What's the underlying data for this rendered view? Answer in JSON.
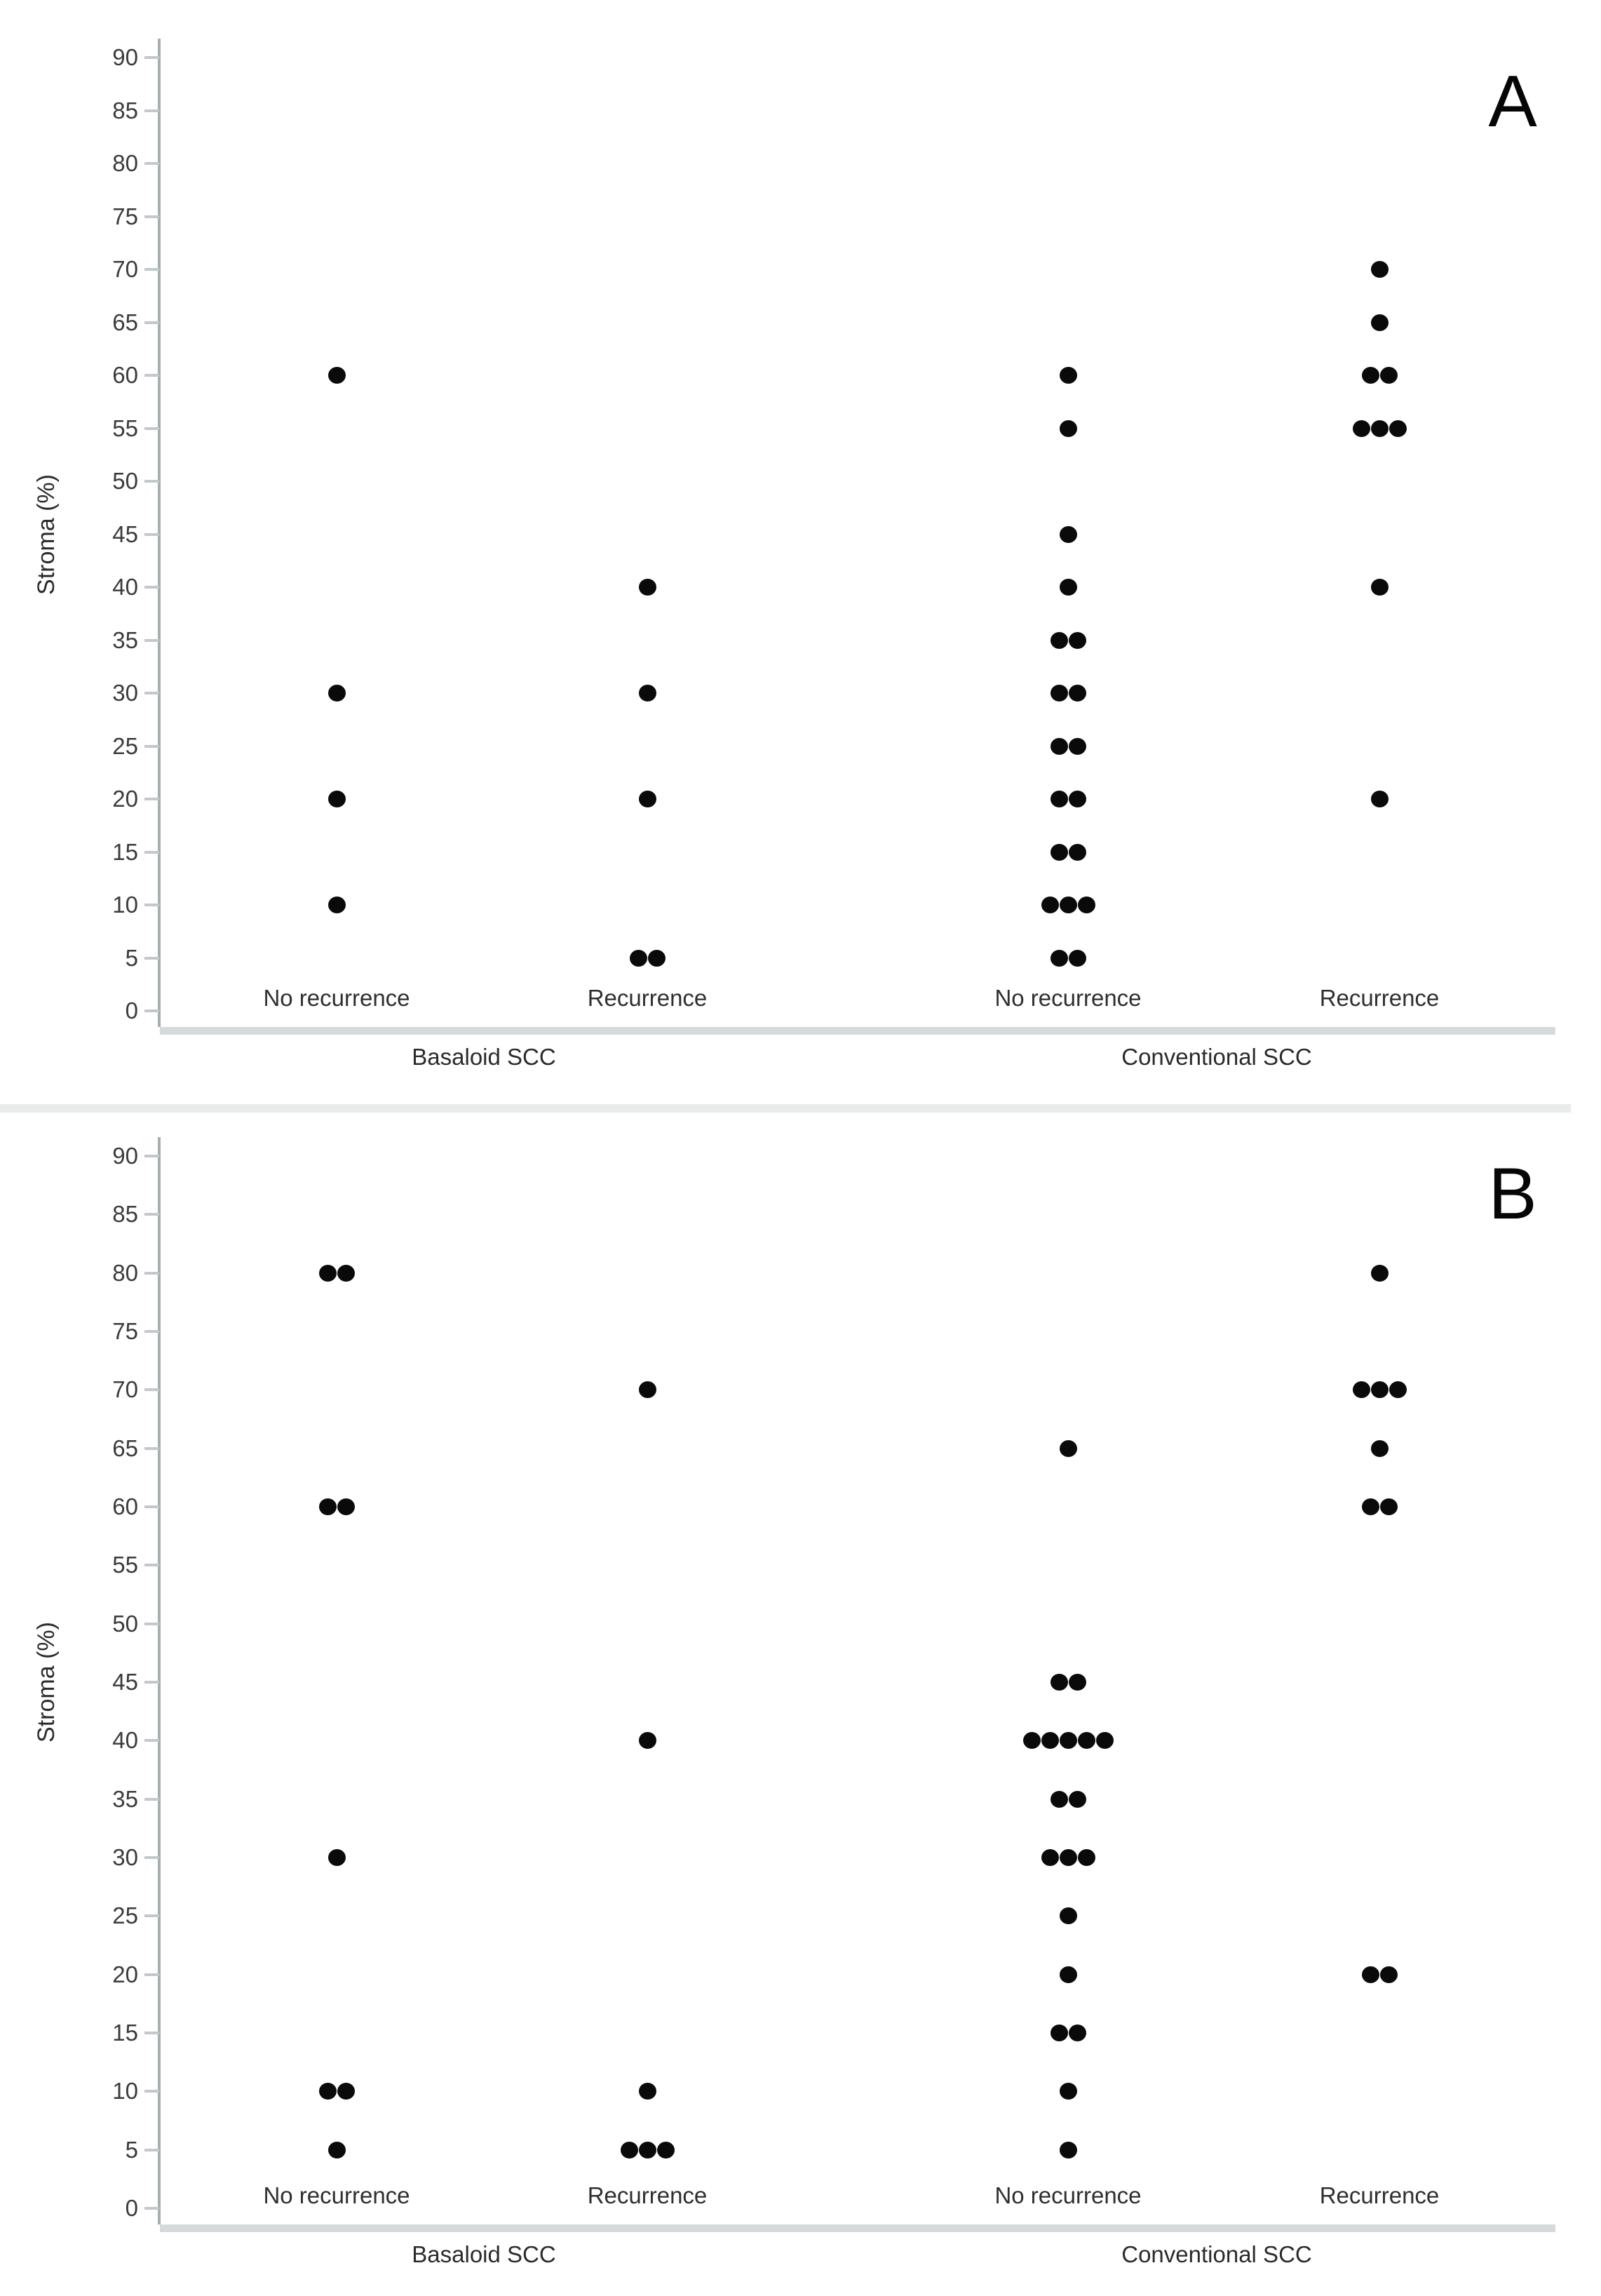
{
  "axis": {
    "min": 0,
    "max": 90,
    "step": 5,
    "tick_labels": [
      "0",
      "5",
      "10",
      "15",
      "20",
      "25",
      "30",
      "35",
      "40",
      "45",
      "50",
      "55",
      "60",
      "65",
      "70",
      "75",
      "80",
      "85",
      "90"
    ]
  },
  "colors": {
    "dot": "#0a0a0a",
    "axis_line": "#a6aeb1",
    "tick_mark": "#c3c8ca",
    "band": "#d7dadb",
    "divider": "#e9eaea",
    "text": "#2f2f2f"
  },
  "chart_data": [
    {
      "type": "scatter",
      "panel_label": "A",
      "title": "",
      "ylabel": "Stroma (%)",
      "ylim": [
        0,
        90
      ],
      "ytick_step": 5,
      "grid": false,
      "categories": [
        "No recurrence",
        "Recurrence",
        "No recurrence",
        "Recurrence"
      ],
      "groups": [
        "Basaloid SCC",
        "Conventional SCC"
      ],
      "series": [
        {
          "name": "Basaloid SCC - No recurrence",
          "group": "Basaloid SCC",
          "category": "No recurrence",
          "values": [
            60,
            30,
            20,
            10
          ]
        },
        {
          "name": "Basaloid SCC - Recurrence",
          "group": "Basaloid SCC",
          "category": "Recurrence",
          "values": [
            40,
            30,
            20,
            5,
            5
          ]
        },
        {
          "name": "Conventional SCC - No recurrence",
          "group": "Conventional SCC",
          "category": "No recurrence",
          "values": [
            60,
            55,
            45,
            40,
            35,
            35,
            30,
            30,
            25,
            25,
            20,
            20,
            15,
            15,
            10,
            10,
            10,
            5,
            5
          ]
        },
        {
          "name": "Conventional SCC - Recurrence",
          "group": "Conventional SCC",
          "category": "Recurrence",
          "values": [
            70,
            65,
            60,
            60,
            55,
            55,
            55,
            40,
            20
          ]
        }
      ]
    },
    {
      "type": "scatter",
      "panel_label": "B",
      "title": "",
      "ylabel": "Stroma (%)",
      "ylim": [
        0,
        90
      ],
      "ytick_step": 5,
      "grid": false,
      "categories": [
        "No recurrence",
        "Recurrence",
        "No recurrence",
        "Recurrence"
      ],
      "groups": [
        "Basaloid SCC",
        "Conventional SCC"
      ],
      "series": [
        {
          "name": "Basaloid SCC - No recurrence",
          "group": "Basaloid SCC",
          "category": "No recurrence",
          "values": [
            80,
            80,
            60,
            60,
            30,
            10,
            10,
            5
          ]
        },
        {
          "name": "Basaloid SCC - Recurrence",
          "group": "Basaloid SCC",
          "category": "Recurrence",
          "values": [
            70,
            40,
            10,
            5,
            5,
            5
          ]
        },
        {
          "name": "Conventional SCC - No recurrence",
          "group": "Conventional SCC",
          "category": "No recurrence",
          "values": [
            65,
            45,
            45,
            40,
            40,
            40,
            40,
            40,
            35,
            35,
            30,
            30,
            30,
            25,
            20,
            15,
            15,
            10,
            5
          ]
        },
        {
          "name": "Conventional SCC - Recurrence",
          "group": "Conventional SCC",
          "category": "Recurrence",
          "values": [
            80,
            70,
            70,
            70,
            65,
            60,
            60,
            20,
            20
          ]
        }
      ]
    }
  ]
}
